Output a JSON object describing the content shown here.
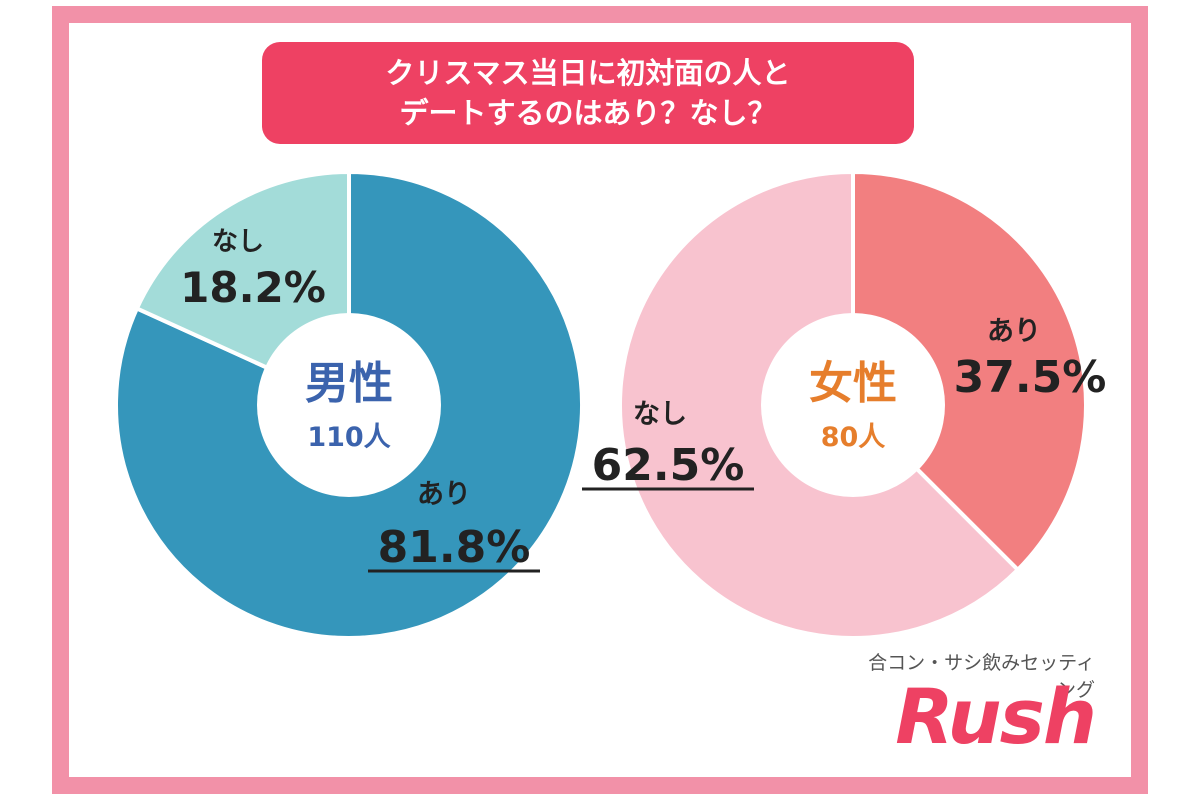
{
  "title": {
    "line1": "クリスマス当日に初対面の人と",
    "line2": "デートするのはあり？なし？"
  },
  "brand": {
    "subtitle": "合コン・サシ飲みセッティング",
    "name": "Rush",
    "color": "#ee4163"
  },
  "colors": {
    "frame": "#f291a8",
    "title_bg": "#ee4163",
    "male_center_text": "#3b63ad",
    "female_center_text": "#e67e2c"
  },
  "chart_data": [
    {
      "type": "pie",
      "center_label": "男性",
      "center_count": "110人",
      "slices": [
        {
          "label": "あり",
          "value": 81.8,
          "value_label": "81.8%",
          "color": "#3596bb",
          "underline": true
        },
        {
          "label": "なし",
          "value": 18.2,
          "value_label": "18.2%",
          "color": "#a3dcd9",
          "underline": false
        }
      ]
    },
    {
      "type": "pie",
      "center_label": "女性",
      "center_count": "80人",
      "slices": [
        {
          "label": "あり",
          "value": 37.5,
          "value_label": "37.5%",
          "color": "#f27f80",
          "underline": false
        },
        {
          "label": "なし",
          "value": 62.5,
          "value_label": "62.5%",
          "color": "#f8c3cf",
          "underline": true
        }
      ]
    }
  ]
}
